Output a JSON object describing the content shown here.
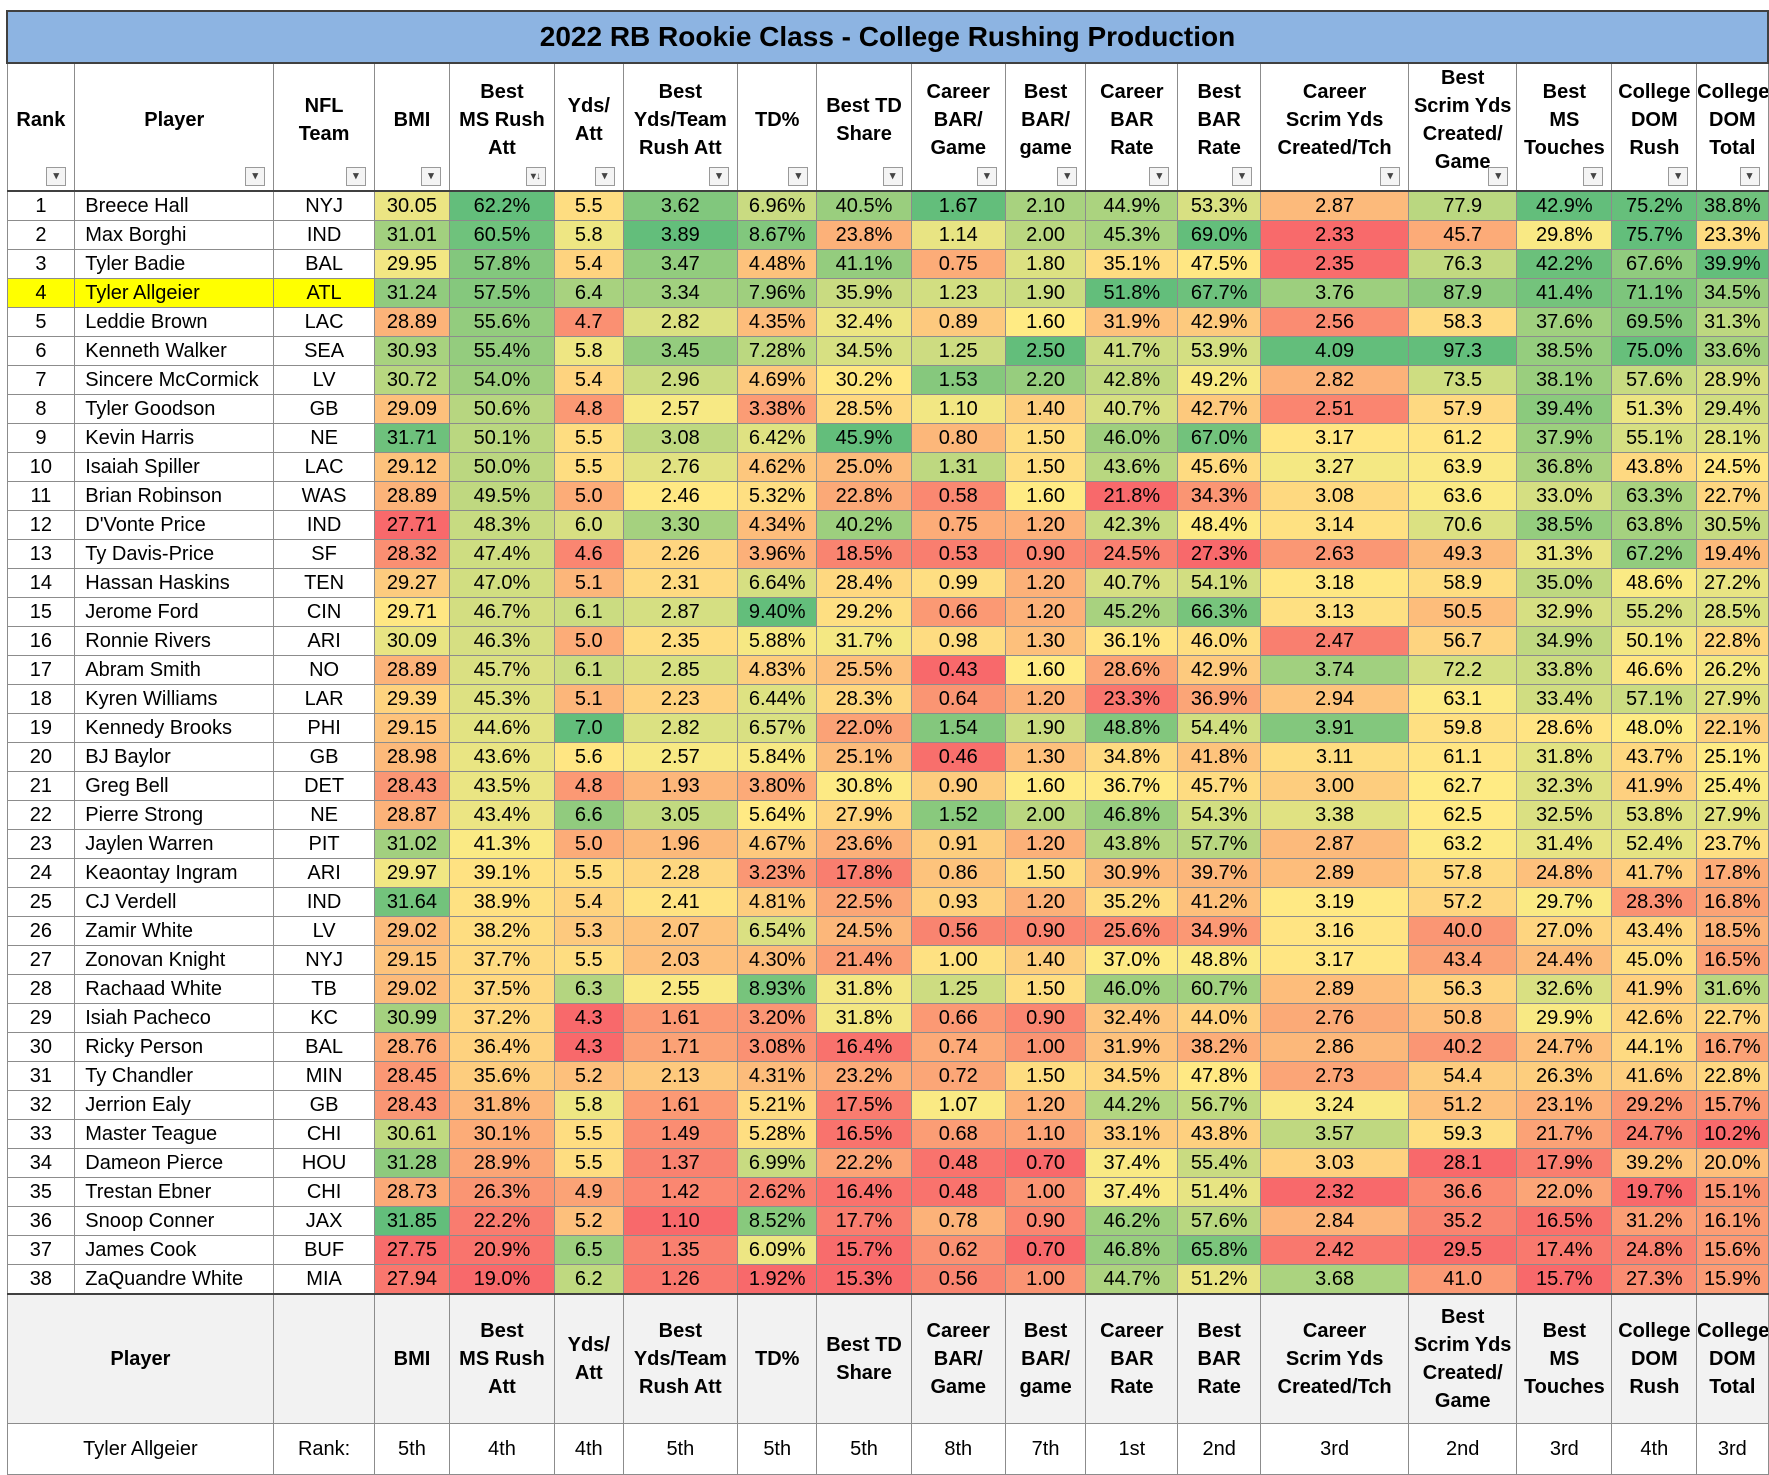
{
  "title": "2022 RB Rookie Class - College Rushing Production",
  "columns": [
    "Rank",
    "Player",
    "NFL\nTeam",
    "BMI",
    "Best\nMS Rush\nAtt",
    "Yds/\nAtt",
    "Best\nYds/Team\nRush Att",
    "TD%",
    "Best TD\nShare",
    "Career\nBAR/\nGame",
    "Best\nBAR/\ngame",
    "Career\nBAR\nRate",
    "Best\nBAR\nRate",
    "Career\nScrim Yds\nCreated/Tch",
    "Best\nScrim Yds\nCreated/\nGame",
    "Best\nMS\nTouches",
    "College\nDOM\nRush",
    "College\nDOM\nTotal"
  ],
  "footer_columns": [
    "Player",
    "",
    "BMI",
    "Best\nMS Rush\nAtt",
    "Yds/\nAtt",
    "Best\nYds/Team\nRush Att",
    "TD%",
    "Best TD\nShare",
    "Career\nBAR/\nGame",
    "Best\nBAR/\ngame",
    "Career\nBAR\nRate",
    "Best\nBAR\nRate",
    "Career\nScrim Yds\nCreated/Tch",
    "Best\nScrim Yds\nCreated/\nGame",
    "Best\nMS\nTouches",
    "College\nDOM\nRush",
    "College\nDOM\nTotal"
  ],
  "sort_indicator": "↓",
  "filter_glyph": "▾",
  "highlight_row_rank": "4",
  "rows": [
    [
      "1",
      "Breece Hall",
      "NYJ",
      "30.05",
      "62.2%",
      "5.5",
      "3.62",
      "6.96%",
      "40.5%",
      "1.67",
      "2.10",
      "44.9%",
      "53.3%",
      "2.87",
      "77.9",
      "42.9%",
      "75.2%",
      "38.8%"
    ],
    [
      "2",
      "Max Borghi",
      "IND",
      "31.01",
      "60.5%",
      "5.8",
      "3.89",
      "8.67%",
      "23.8%",
      "1.14",
      "2.00",
      "45.3%",
      "69.0%",
      "2.33",
      "45.7",
      "29.8%",
      "75.7%",
      "23.3%"
    ],
    [
      "3",
      "Tyler Badie",
      "BAL",
      "29.95",
      "57.8%",
      "5.4",
      "3.47",
      "4.48%",
      "41.1%",
      "0.75",
      "1.80",
      "35.1%",
      "47.5%",
      "2.35",
      "76.3",
      "42.2%",
      "67.6%",
      "39.9%"
    ],
    [
      "4",
      "Tyler Allgeier",
      "ATL",
      "31.24",
      "57.5%",
      "6.4",
      "3.34",
      "7.96%",
      "35.9%",
      "1.23",
      "1.90",
      "51.8%",
      "67.7%",
      "3.76",
      "87.9",
      "41.4%",
      "71.1%",
      "34.5%"
    ],
    [
      "5",
      "Leddie Brown",
      "LAC",
      "28.89",
      "55.6%",
      "4.7",
      "2.82",
      "4.35%",
      "32.4%",
      "0.89",
      "1.60",
      "31.9%",
      "42.9%",
      "2.56",
      "58.3",
      "37.6%",
      "69.5%",
      "31.3%"
    ],
    [
      "6",
      "Kenneth Walker",
      "SEA",
      "30.93",
      "55.4%",
      "5.8",
      "3.45",
      "7.28%",
      "34.5%",
      "1.25",
      "2.50",
      "41.7%",
      "53.9%",
      "4.09",
      "97.3",
      "38.5%",
      "75.0%",
      "33.6%"
    ],
    [
      "7",
      "Sincere McCormick",
      "LV",
      "30.72",
      "54.0%",
      "5.4",
      "2.96",
      "4.69%",
      "30.2%",
      "1.53",
      "2.20",
      "42.8%",
      "49.2%",
      "2.82",
      "73.5",
      "38.1%",
      "57.6%",
      "28.9%"
    ],
    [
      "8",
      "Tyler Goodson",
      "GB",
      "29.09",
      "50.6%",
      "4.8",
      "2.57",
      "3.38%",
      "28.5%",
      "1.10",
      "1.40",
      "40.7%",
      "42.7%",
      "2.51",
      "57.9",
      "39.4%",
      "51.3%",
      "29.4%"
    ],
    [
      "9",
      "Kevin Harris",
      "NE",
      "31.71",
      "50.1%",
      "5.5",
      "3.08",
      "6.42%",
      "45.9%",
      "0.80",
      "1.50",
      "46.0%",
      "67.0%",
      "3.17",
      "61.2",
      "37.9%",
      "55.1%",
      "28.1%"
    ],
    [
      "10",
      "Isaiah Spiller",
      "LAC",
      "29.12",
      "50.0%",
      "5.5",
      "2.76",
      "4.62%",
      "25.0%",
      "1.31",
      "1.50",
      "43.6%",
      "45.6%",
      "3.27",
      "63.9",
      "36.8%",
      "43.8%",
      "24.5%"
    ],
    [
      "11",
      "Brian Robinson",
      "WAS",
      "28.89",
      "49.5%",
      "5.0",
      "2.46",
      "5.32%",
      "22.8%",
      "0.58",
      "1.60",
      "21.8%",
      "34.3%",
      "3.08",
      "63.6",
      "33.0%",
      "63.3%",
      "22.7%"
    ],
    [
      "12",
      "D'Vonte Price",
      "IND",
      "27.71",
      "48.3%",
      "6.0",
      "3.30",
      "4.34%",
      "40.2%",
      "0.75",
      "1.20",
      "42.3%",
      "48.4%",
      "3.14",
      "70.6",
      "38.5%",
      "63.8%",
      "30.5%"
    ],
    [
      "13",
      "Ty Davis-Price",
      "SF",
      "28.32",
      "47.4%",
      "4.6",
      "2.26",
      "3.96%",
      "18.5%",
      "0.53",
      "0.90",
      "24.5%",
      "27.3%",
      "2.63",
      "49.3",
      "31.3%",
      "67.2%",
      "19.4%"
    ],
    [
      "14",
      "Hassan Haskins",
      "TEN",
      "29.27",
      "47.0%",
      "5.1",
      "2.31",
      "6.64%",
      "28.4%",
      "0.99",
      "1.20",
      "40.7%",
      "54.1%",
      "3.18",
      "58.9",
      "35.0%",
      "48.6%",
      "27.2%"
    ],
    [
      "15",
      "Jerome Ford",
      "CIN",
      "29.71",
      "46.7%",
      "6.1",
      "2.87",
      "9.40%",
      "29.2%",
      "0.66",
      "1.20",
      "45.2%",
      "66.3%",
      "3.13",
      "50.5",
      "32.9%",
      "55.2%",
      "28.5%"
    ],
    [
      "16",
      "Ronnie Rivers",
      "ARI",
      "30.09",
      "46.3%",
      "5.0",
      "2.35",
      "5.88%",
      "31.7%",
      "0.98",
      "1.30",
      "36.1%",
      "46.0%",
      "2.47",
      "56.7",
      "34.9%",
      "50.1%",
      "22.8%"
    ],
    [
      "17",
      "Abram Smith",
      "NO",
      "28.89",
      "45.7%",
      "6.1",
      "2.85",
      "4.83%",
      "25.5%",
      "0.43",
      "1.60",
      "28.6%",
      "42.9%",
      "3.74",
      "72.2",
      "33.8%",
      "46.6%",
      "26.2%"
    ],
    [
      "18",
      "Kyren Williams",
      "LAR",
      "29.39",
      "45.3%",
      "5.1",
      "2.23",
      "6.44%",
      "28.3%",
      "0.64",
      "1.20",
      "23.3%",
      "36.9%",
      "2.94",
      "63.1",
      "33.4%",
      "57.1%",
      "27.9%"
    ],
    [
      "19",
      "Kennedy Brooks",
      "PHI",
      "29.15",
      "44.6%",
      "7.0",
      "2.82",
      "6.57%",
      "22.0%",
      "1.54",
      "1.90",
      "48.8%",
      "54.4%",
      "3.91",
      "59.8",
      "28.6%",
      "48.0%",
      "22.1%"
    ],
    [
      "20",
      "BJ Baylor",
      "GB",
      "28.98",
      "43.6%",
      "5.6",
      "2.57",
      "5.84%",
      "25.1%",
      "0.46",
      "1.30",
      "34.8%",
      "41.8%",
      "3.11",
      "61.1",
      "31.8%",
      "43.7%",
      "25.1%"
    ],
    [
      "21",
      "Greg Bell",
      "DET",
      "28.43",
      "43.5%",
      "4.8",
      "1.93",
      "3.80%",
      "30.8%",
      "0.90",
      "1.60",
      "36.7%",
      "45.7%",
      "3.00",
      "62.7",
      "32.3%",
      "41.9%",
      "25.4%"
    ],
    [
      "22",
      "Pierre Strong",
      "NE",
      "28.87",
      "43.4%",
      "6.6",
      "3.05",
      "5.64%",
      "27.9%",
      "1.52",
      "2.00",
      "46.8%",
      "54.3%",
      "3.38",
      "62.5",
      "32.5%",
      "53.8%",
      "27.9%"
    ],
    [
      "23",
      "Jaylen Warren",
      "PIT",
      "31.02",
      "41.3%",
      "5.0",
      "1.96",
      "4.67%",
      "23.6%",
      "0.91",
      "1.20",
      "43.8%",
      "57.7%",
      "2.87",
      "63.2",
      "31.4%",
      "52.4%",
      "23.7%"
    ],
    [
      "24",
      "Keaontay Ingram",
      "ARI",
      "29.97",
      "39.1%",
      "5.5",
      "2.28",
      "3.23%",
      "17.8%",
      "0.86",
      "1.50",
      "30.9%",
      "39.7%",
      "2.89",
      "57.8",
      "24.8%",
      "41.7%",
      "17.8%"
    ],
    [
      "25",
      "CJ Verdell",
      "IND",
      "31.64",
      "38.9%",
      "5.4",
      "2.41",
      "4.81%",
      "22.5%",
      "0.93",
      "1.20",
      "35.2%",
      "41.2%",
      "3.19",
      "57.2",
      "29.7%",
      "28.3%",
      "16.8%"
    ],
    [
      "26",
      "Zamir White",
      "LV",
      "29.02",
      "38.2%",
      "5.3",
      "2.07",
      "6.54%",
      "24.5%",
      "0.56",
      "0.90",
      "25.6%",
      "34.9%",
      "3.16",
      "40.0",
      "27.0%",
      "43.4%",
      "18.5%"
    ],
    [
      "27",
      "Zonovan Knight",
      "NYJ",
      "29.15",
      "37.7%",
      "5.5",
      "2.03",
      "4.30%",
      "21.4%",
      "1.00",
      "1.40",
      "37.0%",
      "48.8%",
      "3.17",
      "43.4",
      "24.4%",
      "45.0%",
      "16.5%"
    ],
    [
      "28",
      "Rachaad White",
      "TB",
      "29.02",
      "37.5%",
      "6.3",
      "2.55",
      "8.93%",
      "31.8%",
      "1.25",
      "1.50",
      "46.0%",
      "60.7%",
      "2.89",
      "56.3",
      "32.6%",
      "41.9%",
      "31.6%"
    ],
    [
      "29",
      "Isiah Pacheco",
      "KC",
      "30.99",
      "37.2%",
      "4.3",
      "1.61",
      "3.20%",
      "31.8%",
      "0.66",
      "0.90",
      "32.4%",
      "44.0%",
      "2.76",
      "50.8",
      "29.9%",
      "42.6%",
      "22.7%"
    ],
    [
      "30",
      "Ricky Person",
      "BAL",
      "28.76",
      "36.4%",
      "4.3",
      "1.71",
      "3.08%",
      "16.4%",
      "0.74",
      "1.00",
      "31.9%",
      "38.2%",
      "2.86",
      "40.2",
      "24.7%",
      "44.1%",
      "16.7%"
    ],
    [
      "31",
      "Ty Chandler",
      "MIN",
      "28.45",
      "35.6%",
      "5.2",
      "2.13",
      "4.31%",
      "23.2%",
      "0.72",
      "1.50",
      "34.5%",
      "47.8%",
      "2.73",
      "54.4",
      "26.3%",
      "41.6%",
      "22.8%"
    ],
    [
      "32",
      "Jerrion Ealy",
      "GB",
      "28.43",
      "31.8%",
      "5.8",
      "1.61",
      "5.21%",
      "17.5%",
      "1.07",
      "1.20",
      "44.2%",
      "56.7%",
      "3.24",
      "51.2",
      "23.1%",
      "29.2%",
      "15.7%"
    ],
    [
      "33",
      "Master Teague",
      "CHI",
      "30.61",
      "30.1%",
      "5.5",
      "1.49",
      "5.28%",
      "16.5%",
      "0.68",
      "1.10",
      "33.1%",
      "43.8%",
      "3.57",
      "59.3",
      "21.7%",
      "24.7%",
      "10.2%"
    ],
    [
      "34",
      "Dameon Pierce",
      "HOU",
      "31.28",
      "28.9%",
      "5.5",
      "1.37",
      "6.99%",
      "22.2%",
      "0.48",
      "0.70",
      "37.4%",
      "55.4%",
      "3.03",
      "28.1",
      "17.9%",
      "39.2%",
      "20.0%"
    ],
    [
      "35",
      "Trestan Ebner",
      "CHI",
      "28.73",
      "26.3%",
      "4.9",
      "1.42",
      "2.62%",
      "16.4%",
      "0.48",
      "1.00",
      "37.4%",
      "51.4%",
      "2.32",
      "36.6",
      "22.0%",
      "19.7%",
      "15.1%"
    ],
    [
      "36",
      "Snoop Conner",
      "JAX",
      "31.85",
      "22.2%",
      "5.2",
      "1.10",
      "8.52%",
      "17.7%",
      "0.78",
      "0.90",
      "46.2%",
      "57.6%",
      "2.84",
      "35.2",
      "16.5%",
      "31.2%",
      "16.1%"
    ],
    [
      "37",
      "James Cook",
      "BUF",
      "27.75",
      "20.9%",
      "6.5",
      "1.35",
      "6.09%",
      "15.7%",
      "0.62",
      "0.70",
      "46.8%",
      "65.8%",
      "2.42",
      "29.5",
      "17.4%",
      "24.8%",
      "15.6%"
    ],
    [
      "38",
      "ZaQuandre White",
      "MIA",
      "27.94",
      "19.0%",
      "6.2",
      "1.26",
      "1.92%",
      "15.3%",
      "0.56",
      "1.00",
      "44.7%",
      "51.2%",
      "3.68",
      "41.0",
      "15.7%",
      "27.3%",
      "15.9%"
    ]
  ],
  "footer": {
    "player": "Tyler Allgeier",
    "rank_label": "Rank:",
    "ranks": [
      "5th",
      "4th",
      "4th",
      "5th",
      "5th",
      "5th",
      "8th",
      "7th",
      "1st",
      "2nd",
      "3rd",
      "2nd",
      "3rd",
      "4th",
      "3rd"
    ]
  },
  "scale_colors": {
    "low": "#f8696b",
    "mid": "#ffeb84",
    "high": "#63be7b",
    "highlight": "#ffff00"
  }
}
